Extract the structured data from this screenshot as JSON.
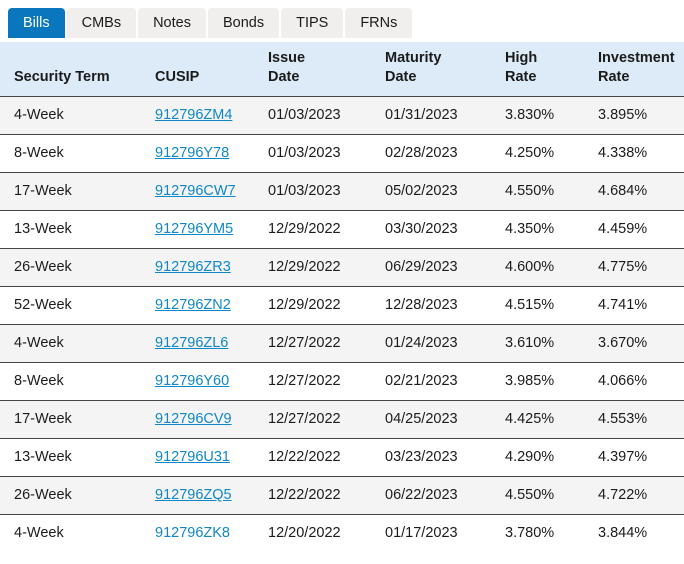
{
  "tabs": [
    {
      "label": "Bills",
      "active": true
    },
    {
      "label": "CMBs",
      "active": false
    },
    {
      "label": "Notes",
      "active": false
    },
    {
      "label": "Bonds",
      "active": false
    },
    {
      "label": "TIPS",
      "active": false
    },
    {
      "label": "FRNs",
      "active": false
    }
  ],
  "table": {
    "columns": [
      {
        "key": "security_term",
        "lines": [
          "Security Term"
        ]
      },
      {
        "key": "cusip",
        "lines": [
          "CUSIP"
        ]
      },
      {
        "key": "issue_date",
        "lines": [
          "Issue",
          "Date"
        ]
      },
      {
        "key": "maturity_date",
        "lines": [
          "Maturity",
          "Date"
        ]
      },
      {
        "key": "high_rate",
        "lines": [
          "High",
          "Rate"
        ]
      },
      {
        "key": "investment_rate",
        "lines": [
          "Investment",
          "Rate"
        ]
      }
    ],
    "rows": [
      {
        "security_term": "4-Week",
        "cusip": "912796ZM4",
        "cusip_underlined": true,
        "issue_date": "01/03/2023",
        "maturity_date": "01/31/2023",
        "high_rate": "3.830%",
        "investment_rate": "3.895%"
      },
      {
        "security_term": "8-Week",
        "cusip": "912796Y78",
        "cusip_underlined": true,
        "issue_date": "01/03/2023",
        "maturity_date": "02/28/2023",
        "high_rate": "4.250%",
        "investment_rate": "4.338%"
      },
      {
        "security_term": "17-Week",
        "cusip": "912796CW7",
        "cusip_underlined": true,
        "issue_date": "01/03/2023",
        "maturity_date": "05/02/2023",
        "high_rate": "4.550%",
        "investment_rate": "4.684%"
      },
      {
        "security_term": "13-Week",
        "cusip": "912796YM5",
        "cusip_underlined": true,
        "issue_date": "12/29/2022",
        "maturity_date": "03/30/2023",
        "high_rate": "4.350%",
        "investment_rate": "4.459%"
      },
      {
        "security_term": "26-Week",
        "cusip": "912796ZR3",
        "cusip_underlined": true,
        "issue_date": "12/29/2022",
        "maturity_date": "06/29/2023",
        "high_rate": "4.600%",
        "investment_rate": "4.775%"
      },
      {
        "security_term": "52-Week",
        "cusip": "912796ZN2",
        "cusip_underlined": true,
        "issue_date": "12/29/2022",
        "maturity_date": "12/28/2023",
        "high_rate": "4.515%",
        "investment_rate": "4.741%"
      },
      {
        "security_term": "4-Week",
        "cusip": "912796ZL6",
        "cusip_underlined": true,
        "issue_date": "12/27/2022",
        "maturity_date": "01/24/2023",
        "high_rate": "3.610%",
        "investment_rate": "3.670%"
      },
      {
        "security_term": "8-Week",
        "cusip": "912796Y60",
        "cusip_underlined": true,
        "issue_date": "12/27/2022",
        "maturity_date": "02/21/2023",
        "high_rate": "3.985%",
        "investment_rate": "4.066%"
      },
      {
        "security_term": "17-Week",
        "cusip": "912796CV9",
        "cusip_underlined": true,
        "issue_date": "12/27/2022",
        "maturity_date": "04/25/2023",
        "high_rate": "4.425%",
        "investment_rate": "4.553%"
      },
      {
        "security_term": "13-Week",
        "cusip": "912796U31",
        "cusip_underlined": true,
        "issue_date": "12/22/2022",
        "maturity_date": "03/23/2023",
        "high_rate": "4.290%",
        "investment_rate": "4.397%"
      },
      {
        "security_term": "26-Week",
        "cusip": "912796ZQ5",
        "cusip_underlined": true,
        "issue_date": "12/22/2022",
        "maturity_date": "06/22/2023",
        "high_rate": "4.550%",
        "investment_rate": "4.722%"
      },
      {
        "security_term": "4-Week",
        "cusip": "912796ZK8",
        "cusip_underlined": false,
        "issue_date": "12/20/2022",
        "maturity_date": "01/17/2023",
        "high_rate": "3.780%",
        "investment_rate": "3.844%"
      }
    ]
  },
  "colors": {
    "active_tab_bg": "#0a76bd",
    "inactive_tab_bg": "#f0efed",
    "header_bg": "#dcebf7",
    "alt_row_bg": "#f4f4f4",
    "row_border": "#454545",
    "link": "#0f87c9",
    "text": "#1b1b1b"
  }
}
